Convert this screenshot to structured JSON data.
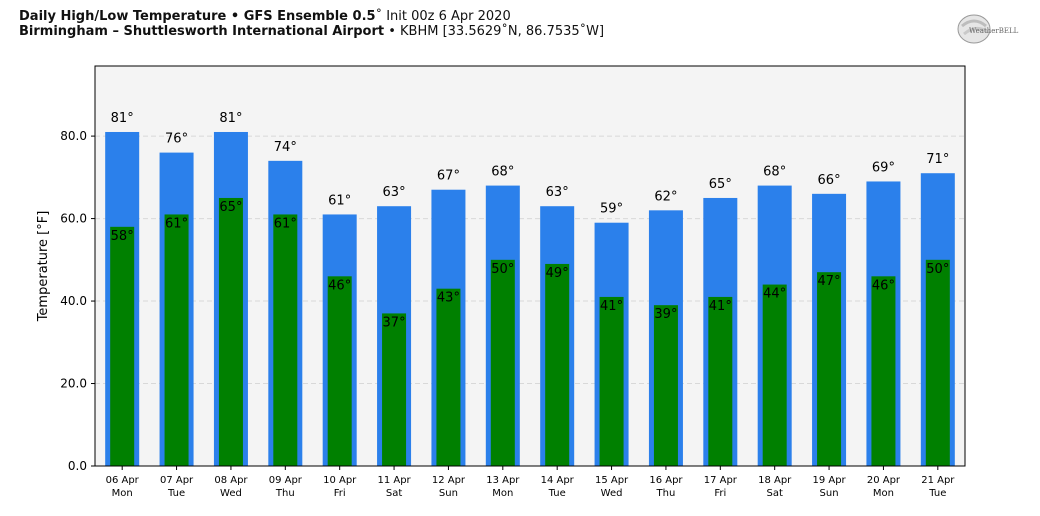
{
  "header": {
    "line1_bold": "Daily High/Low Temperature • GFS Ensemble 0.5",
    "line1_rest": "˚ Init 00z 6 Apr 2020",
    "line2_bold": "Birmingham – Shuttlesworth International Airport",
    "line2_rest": " • KBHM [33.5629˚N, 86.7535˚W]"
  },
  "logo": {
    "text": "WeatherBELL"
  },
  "colors": {
    "high": "#2b80eb",
    "low": "#008000",
    "plot_bg": "#f4f4f4",
    "grid": "#d8d8d8"
  },
  "chart_data": {
    "type": "bar",
    "categories": [
      "06 Apr\nMon",
      "07 Apr\nTue",
      "08 Apr\nWed",
      "09 Apr\nThu",
      "10 Apr\nFri",
      "11 Apr\nSat",
      "12 Apr\nSun",
      "13 Apr\nMon",
      "14 Apr\nTue",
      "15 Apr\nWed",
      "16 Apr\nThu",
      "17 Apr\nFri",
      "18 Apr\nSat",
      "19 Apr\nSun",
      "20 Apr\nMon",
      "21 Apr\nTue"
    ],
    "series": [
      {
        "key": "high",
        "values": [
          81,
          76,
          81,
          74,
          61,
          63,
          67,
          68,
          63,
          59,
          62,
          65,
          68,
          66,
          69,
          71
        ]
      },
      {
        "key": "low",
        "values": [
          58,
          61,
          65,
          61,
          46,
          37,
          43,
          50,
          49,
          41,
          39,
          41,
          44,
          47,
          46,
          50
        ]
      }
    ],
    "ylabel": "Temperature [°F]",
    "yticks": [
      "0.0",
      "20.0",
      "40.0",
      "60.0",
      "80.0"
    ],
    "ylim": [
      0,
      97
    ],
    "value_suffix": "°",
    "grid": true
  }
}
